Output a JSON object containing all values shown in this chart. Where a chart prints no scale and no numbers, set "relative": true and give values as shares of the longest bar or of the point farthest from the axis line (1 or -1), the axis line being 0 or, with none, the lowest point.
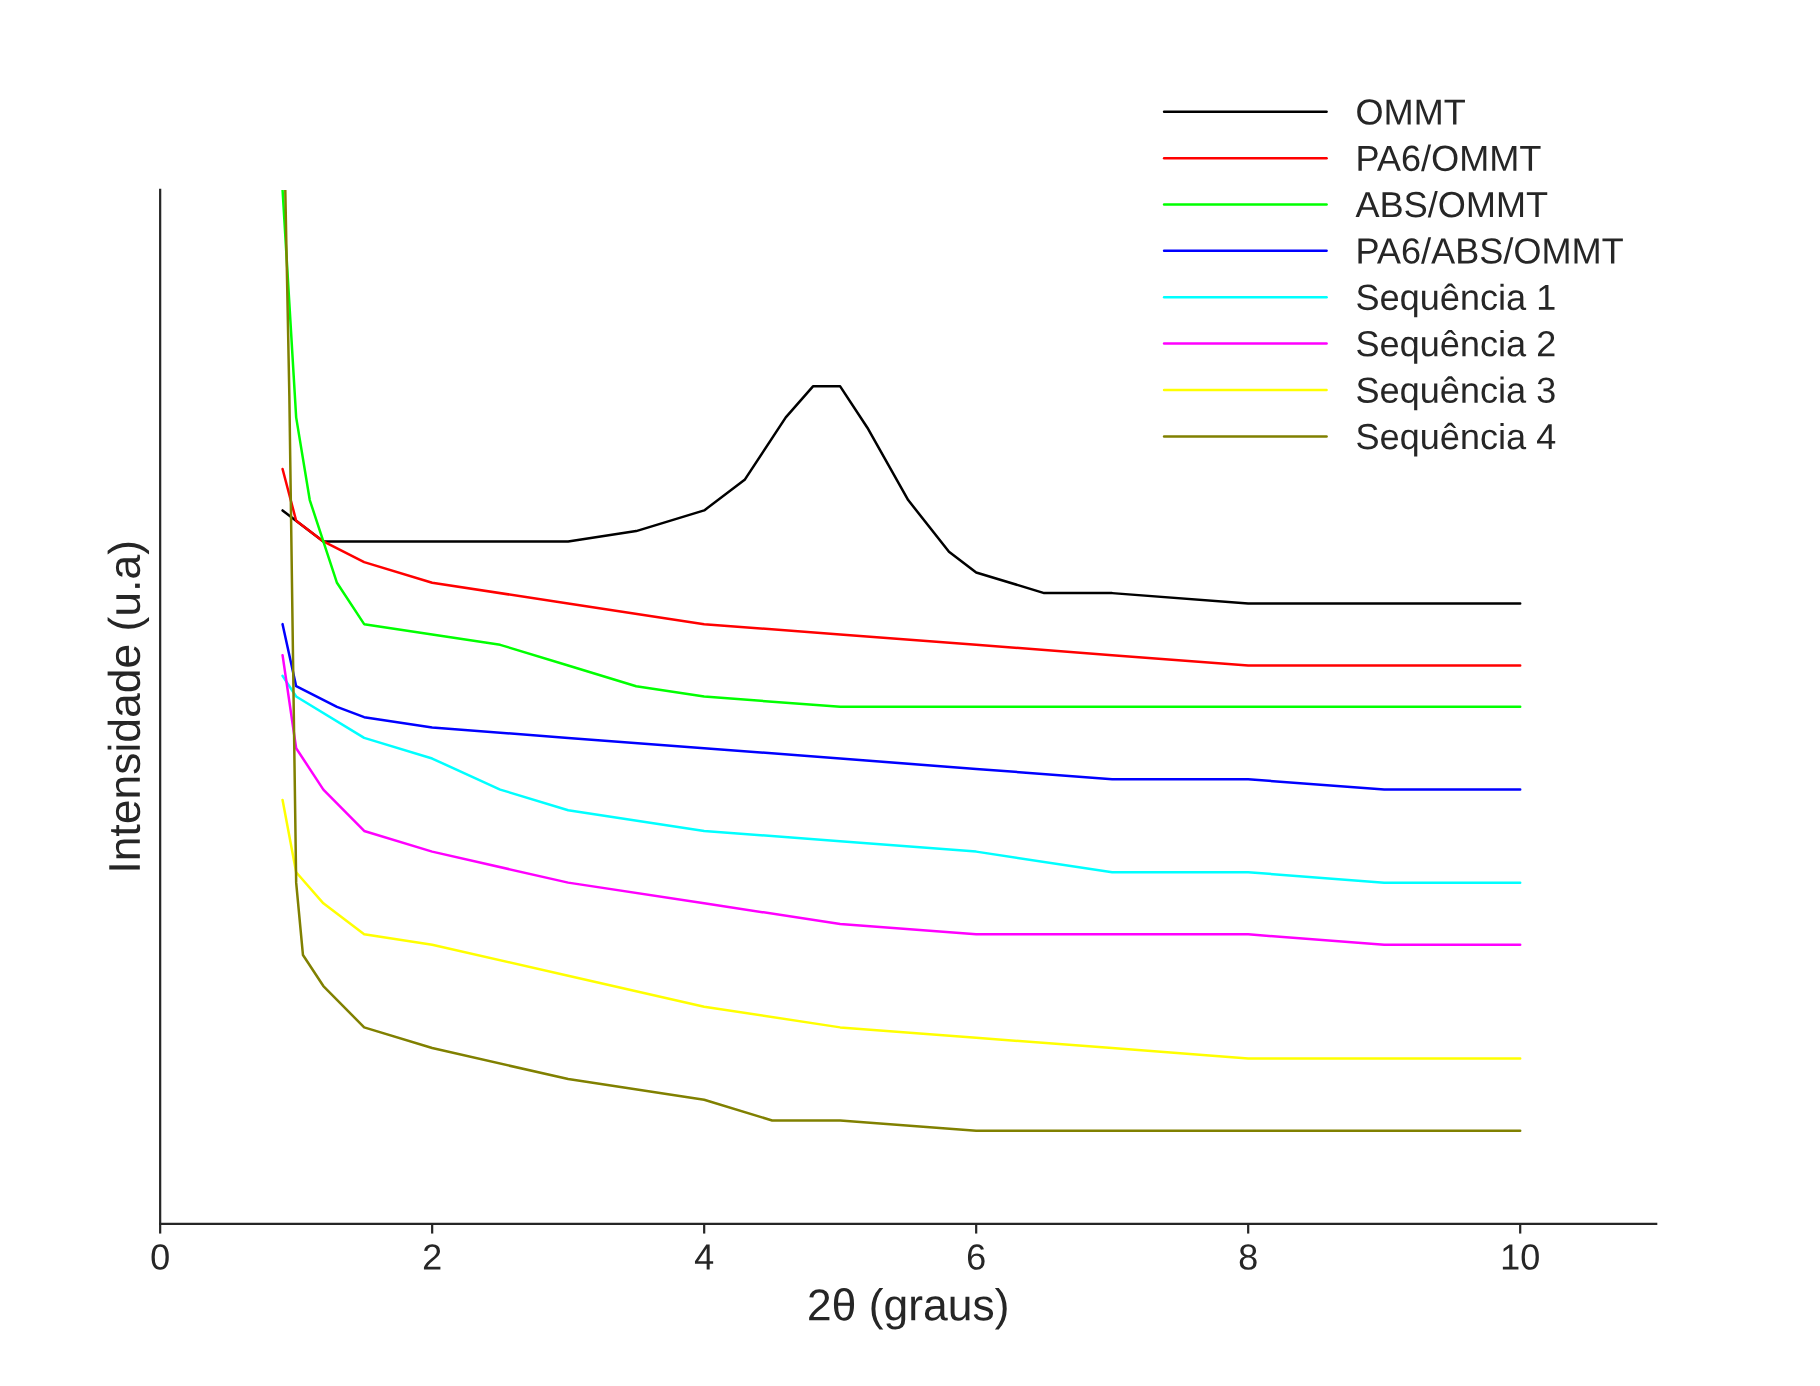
{
  "chart_data": {
    "type": "line",
    "xlabel": "2θ (graus)",
    "ylabel": "Intensidade (u.a)",
    "relative": true,
    "xlim": [
      0,
      11
    ],
    "xticks": [
      0,
      2,
      4,
      6,
      8,
      10
    ],
    "legend": "top right",
    "grid": false,
    "marker": "none",
    "line_style": "solid",
    "series": [
      {
        "name": "OMMT",
        "color": "#000000",
        "x": [
          0.9,
          1.2,
          2,
          3,
          3.5,
          4,
          4.3,
          4.6,
          4.8,
          5.0,
          5.2,
          5.5,
          5.8,
          6,
          6.5,
          7,
          8,
          9,
          10
        ],
        "values": [
          0.69,
          0.66,
          0.66,
          0.66,
          0.67,
          0.69,
          0.72,
          0.78,
          0.81,
          0.81,
          0.77,
          0.7,
          0.65,
          0.63,
          0.61,
          0.61,
          0.6,
          0.6,
          0.6
        ]
      },
      {
        "name": "PA6/OMMT",
        "color": "#ff0000",
        "x": [
          0.9,
          1.0,
          1.2,
          1.5,
          2,
          3,
          4,
          5,
          6,
          7,
          8,
          9,
          10
        ],
        "values": [
          0.73,
          0.68,
          0.66,
          0.64,
          0.62,
          0.6,
          0.58,
          0.57,
          0.56,
          0.55,
          0.54,
          0.54,
          0.54
        ]
      },
      {
        "name": "ABS/OMMT",
        "color": "#00ff00",
        "x": [
          0.9,
          0.95,
          1.0,
          1.1,
          1.3,
          1.5,
          2,
          2.5,
          3,
          3.5,
          4,
          5,
          6,
          8,
          10
        ],
        "values": [
          1.0,
          0.89,
          0.78,
          0.7,
          0.62,
          0.58,
          0.57,
          0.56,
          0.54,
          0.52,
          0.51,
          0.5,
          0.5,
          0.5,
          0.5
        ]
      },
      {
        "name": "PA6/ABS/OMMT",
        "color": "#0000ff",
        "x": [
          0.9,
          1.0,
          1.3,
          1.5,
          2,
          3,
          4,
          5,
          6,
          7,
          8,
          9,
          10
        ],
        "values": [
          0.58,
          0.52,
          0.5,
          0.49,
          0.48,
          0.47,
          0.46,
          0.45,
          0.44,
          0.43,
          0.43,
          0.42,
          0.42
        ]
      },
      {
        "name": "Sequência 1",
        "color": "#00ffff",
        "x": [
          0.9,
          1.0,
          1.5,
          2,
          2.5,
          3,
          4,
          5,
          6,
          7,
          8,
          9,
          10
        ],
        "values": [
          0.53,
          0.51,
          0.47,
          0.45,
          0.42,
          0.4,
          0.38,
          0.37,
          0.36,
          0.34,
          0.34,
          0.33,
          0.33
        ]
      },
      {
        "name": "Sequência 2",
        "color": "#ff00ff",
        "x": [
          0.9,
          1.0,
          1.2,
          1.5,
          2,
          3,
          4,
          5,
          6,
          7,
          8,
          9,
          10
        ],
        "values": [
          0.55,
          0.46,
          0.42,
          0.38,
          0.36,
          0.33,
          0.31,
          0.29,
          0.28,
          0.28,
          0.28,
          0.27,
          0.27
        ]
      },
      {
        "name": "Sequência 3",
        "color": "#ffff00",
        "x": [
          0.9,
          1.0,
          1.2,
          1.5,
          2,
          3,
          4,
          5,
          6,
          7,
          8,
          9,
          10
        ],
        "values": [
          0.41,
          0.34,
          0.31,
          0.28,
          0.27,
          0.24,
          0.21,
          0.19,
          0.18,
          0.17,
          0.16,
          0.16,
          0.16
        ]
      },
      {
        "name": "Sequência 4",
        "color": "#808000",
        "x": [
          0.92,
          0.95,
          1.0,
          1.05,
          1.2,
          1.5,
          2,
          3,
          4,
          4.5,
          5,
          6,
          7,
          8,
          9,
          10
        ],
        "values": [
          1.0,
          0.8,
          0.33,
          0.26,
          0.23,
          0.19,
          0.17,
          0.14,
          0.12,
          0.1,
          0.1,
          0.09,
          0.09,
          0.09,
          0.09,
          0.09
        ]
      }
    ]
  }
}
